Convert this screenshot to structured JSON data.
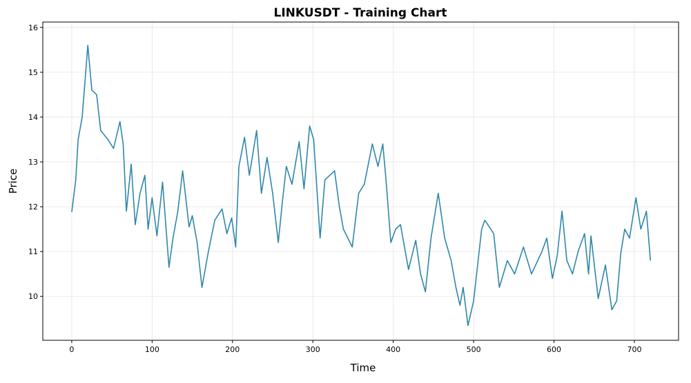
{
  "chart_data": {
    "type": "line",
    "title": "LINKUSDT - Training Chart",
    "x_label": "Time",
    "y_label": "Price",
    "x": [
      0,
      5,
      8,
      13,
      20,
      25,
      31,
      36,
      45,
      52,
      60,
      64,
      68,
      74,
      79,
      85,
      91,
      95,
      100,
      106,
      113,
      117,
      121,
      126,
      132,
      138,
      146,
      150,
      156,
      162,
      170,
      178,
      187,
      193,
      199,
      204,
      208,
      215,
      221,
      230,
      236,
      243,
      250,
      257,
      262,
      267,
      274,
      283,
      289,
      296,
      301,
      309,
      315,
      321,
      327,
      333,
      338,
      349,
      357,
      364,
      374,
      381,
      387,
      391,
      397,
      403,
      409,
      419,
      428,
      434,
      440,
      447,
      456,
      464,
      472,
      478,
      483,
      487,
      493,
      500,
      510,
      514,
      525,
      532,
      542,
      551,
      562,
      572,
      585,
      591,
      598,
      604,
      610,
      616,
      623,
      630,
      638,
      643,
      646,
      655,
      664,
      672,
      678,
      683,
      688,
      694,
      702,
      708,
      715,
      720
    ],
    "values": [
      11.88,
      12.6,
      13.5,
      14.0,
      15.6,
      14.6,
      14.5,
      13.7,
      13.5,
      13.3,
      13.9,
      13.4,
      11.9,
      12.95,
      11.6,
      12.3,
      12.7,
      11.5,
      12.2,
      11.35,
      12.55,
      11.6,
      10.65,
      11.3,
      11.9,
      12.8,
      11.55,
      11.8,
      11.2,
      10.2,
      11.0,
      11.7,
      11.95,
      11.4,
      11.75,
      11.1,
      12.9,
      13.55,
      12.7,
      13.7,
      12.3,
      13.1,
      12.3,
      11.2,
      12.1,
      12.9,
      12.5,
      13.45,
      12.4,
      13.8,
      13.5,
      11.3,
      12.6,
      12.7,
      12.8,
      12.0,
      11.5,
      11.1,
      12.3,
      12.5,
      13.4,
      12.9,
      13.4,
      12.6,
      11.2,
      11.5,
      11.6,
      10.6,
      11.25,
      10.5,
      10.1,
      11.3,
      12.3,
      11.3,
      10.8,
      10.2,
      9.8,
      10.2,
      9.35,
      9.9,
      11.5,
      11.7,
      11.4,
      10.2,
      10.8,
      10.5,
      11.1,
      10.5,
      11.0,
      11.3,
      10.4,
      10.9,
      11.9,
      10.8,
      10.5,
      11.0,
      11.4,
      10.5,
      11.35,
      9.95,
      10.7,
      9.7,
      9.9,
      10.95,
      11.5,
      11.3,
      12.2,
      11.5,
      11.9,
      10.8
    ],
    "color": "#2e86ab",
    "xlim": [
      -36,
      755
    ],
    "ylim": [
      9.02,
      16.12
    ],
    "xticks": [
      0,
      100,
      200,
      300,
      400,
      500,
      600,
      700
    ],
    "yticks": [
      10,
      11,
      12,
      13,
      14,
      15,
      16
    ],
    "grid": true
  }
}
